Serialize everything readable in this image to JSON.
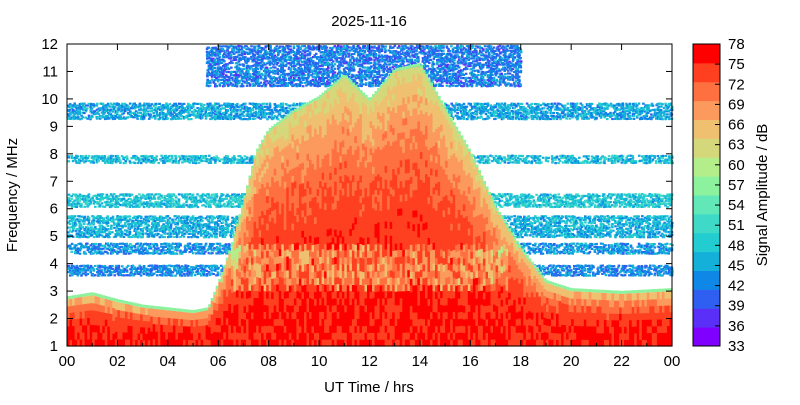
{
  "chart_data": {
    "type": "heatmap",
    "title": "2025-11-16",
    "xlabel": "UT Time / hrs",
    "ylabel": "Frequency / MHz",
    "colorbar_label": "Signal Amplitude / dB",
    "xlim": [
      0,
      24
    ],
    "ylim": [
      1,
      12
    ],
    "clim": [
      33,
      78
    ],
    "x_ticks": [
      "00",
      "02",
      "04",
      "06",
      "08",
      "10",
      "12",
      "14",
      "16",
      "18",
      "20",
      "22",
      "00"
    ],
    "y_ticks": [
      "1",
      "2",
      "3",
      "4",
      "5",
      "6",
      "7",
      "8",
      "9",
      "10",
      "11",
      "12"
    ],
    "colorbar_ticks": [
      "33",
      "36",
      "39",
      "42",
      "45",
      "48",
      "51",
      "54",
      "57",
      "60",
      "63",
      "66",
      "69",
      "72",
      "75",
      "78"
    ],
    "colormap": [
      "#8000ff",
      "#5a2ff8",
      "#2e5ff0",
      "#0f87e6",
      "#14b0d9",
      "#22ccd0",
      "#3fd9c8",
      "#62e8b8",
      "#8cf29e",
      "#b4ee8a",
      "#d4d87a",
      "#eec070",
      "#fb9a5c",
      "#ff7040",
      "#ff4020",
      "#ff0000"
    ],
    "grid": false,
    "upper_envelope_mhz": [
      [
        0,
        2.7
      ],
      [
        1,
        2.85
      ],
      [
        2,
        2.6
      ],
      [
        3,
        2.4
      ],
      [
        4,
        2.3
      ],
      [
        5,
        2.2
      ],
      [
        5.6,
        2.3
      ],
      [
        6,
        3.2
      ],
      [
        6.5,
        4.5
      ],
      [
        7,
        6.2
      ],
      [
        7.5,
        8.0
      ],
      [
        8,
        8.8
      ],
      [
        9,
        9.5
      ],
      [
        10,
        10.0
      ],
      [
        11,
        10.8
      ],
      [
        12,
        9.9
      ],
      [
        13,
        11.0
      ],
      [
        14,
        11.2
      ],
      [
        15,
        9.6
      ],
      [
        16,
        8.0
      ],
      [
        17,
        6.0
      ],
      [
        18,
        4.5
      ],
      [
        19,
        3.3
      ],
      [
        20,
        3.0
      ],
      [
        22,
        2.9
      ],
      [
        24,
        3.0
      ]
    ],
    "background_bands": [
      {
        "x": [
          0,
          24
        ],
        "y": [
          9.3,
          9.9
        ],
        "level_db": 45
      },
      {
        "x": [
          0,
          24
        ],
        "y": [
          7.7,
          8.0
        ],
        "level_db": 47
      },
      {
        "x": [
          0,
          24
        ],
        "y": [
          6.1,
          6.6
        ],
        "level_db": 48
      },
      {
        "x": [
          0,
          24
        ],
        "y": [
          5.0,
          5.8
        ],
        "level_db": 46
      },
      {
        "x": [
          0,
          24
        ],
        "y": [
          4.4,
          4.8
        ],
        "level_db": 44
      },
      {
        "x": [
          0,
          24
        ],
        "y": [
          3.6,
          4.0
        ],
        "level_db": 43
      },
      {
        "x": [
          5.5,
          18
        ],
        "y": [
          10.5,
          12
        ],
        "level_db": 42
      }
    ]
  }
}
